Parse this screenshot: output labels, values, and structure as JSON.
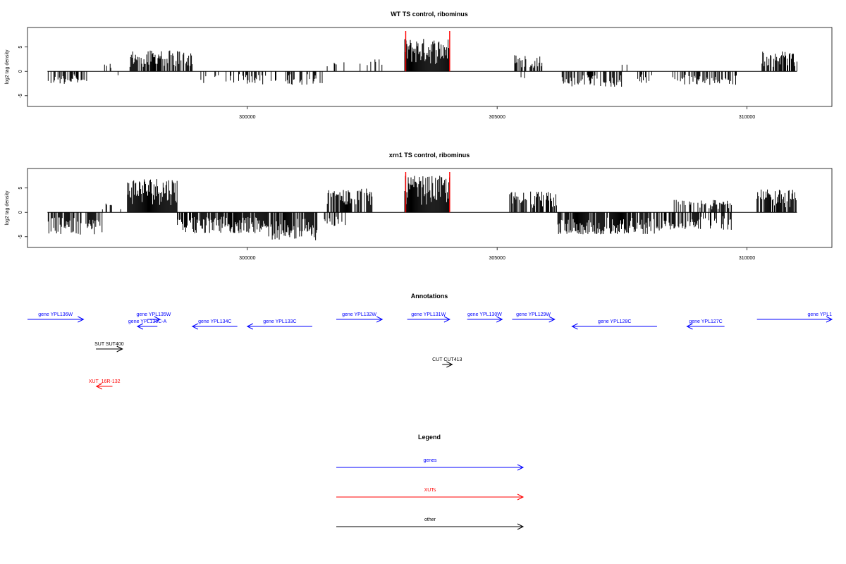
{
  "colors": {
    "gene": "#0000ff",
    "xut": "#ff0000",
    "other": "#000000",
    "highlight": "#ff0000",
    "frame": "#000000"
  },
  "chart_data": [
    {
      "type": "bar",
      "title": "WT TS control, ribominus",
      "ylabel": "log2 tag density",
      "xlim": [
        295600,
        311700
      ],
      "ylim": [
        -7.2,
        9
      ],
      "xticks": [
        300000,
        305000,
        310000
      ],
      "yticks": [
        -5,
        0,
        5
      ],
      "ytick_labels": [
        "-5",
        "0",
        "5"
      ],
      "highlight_lines": [
        303170,
        304050
      ],
      "dense_bars_at": "x is a coordinate; bars pos above 0 neg below",
      "segments": [
        {
          "from": 296000,
          "to": 296800,
          "sign": -1,
          "amp": 2.6,
          "density": 0.55
        },
        {
          "from": 297100,
          "to": 297280,
          "sign": 1,
          "amp": 1.6,
          "density": 0.3
        },
        {
          "from": 297300,
          "to": 297500,
          "sign": -1,
          "amp": 1.5,
          "density": 0.2
        },
        {
          "from": 297650,
          "to": 298900,
          "sign": 1,
          "amp": 4.3,
          "density": 0.75
        },
        {
          "from": 299000,
          "to": 300000,
          "sign": -1,
          "amp": 2.4,
          "density": 0.3
        },
        {
          "from": 300000,
          "to": 301500,
          "sign": -1,
          "amp": 2.8,
          "density": 0.35
        },
        {
          "from": 301500,
          "to": 302300,
          "sign": 1,
          "amp": 2.0,
          "density": 0.15
        },
        {
          "from": 302400,
          "to": 302700,
          "sign": 1,
          "amp": 2.5,
          "density": 0.35
        },
        {
          "from": 303150,
          "to": 304050,
          "sign": 1,
          "amp": 6.8,
          "density": 1.0
        },
        {
          "from": 305350,
          "to": 305900,
          "sign": 1,
          "amp": 3.5,
          "density": 0.65
        },
        {
          "from": 305450,
          "to": 305550,
          "sign": -1,
          "amp": 2.0,
          "density": 0.4
        },
        {
          "from": 306300,
          "to": 307500,
          "sign": -1,
          "amp": 3.2,
          "density": 0.6
        },
        {
          "from": 307500,
          "to": 307600,
          "sign": 1,
          "amp": 1.8,
          "density": 0.3
        },
        {
          "from": 307800,
          "to": 308100,
          "sign": -1,
          "amp": 2.6,
          "density": 0.5
        },
        {
          "from": 308500,
          "to": 309800,
          "sign": -1,
          "amp": 2.8,
          "density": 0.55
        },
        {
          "from": 310300,
          "to": 311000,
          "sign": 1,
          "amp": 4.3,
          "density": 0.75
        }
      ]
    },
    {
      "type": "bar",
      "title": "xrn1 TS control, ribominus",
      "ylabel": "log2 tag density",
      "xlim": [
        295600,
        311700
      ],
      "ylim": [
        -7.2,
        9
      ],
      "xticks": [
        300000,
        305000,
        310000
      ],
      "yticks": [
        -5,
        0,
        5
      ],
      "ytick_labels": [
        "-5",
        "0",
        "5"
      ],
      "highlight_lines": [
        303170,
        304050
      ],
      "segments": [
        {
          "from": 296000,
          "to": 297100,
          "sign": -1,
          "amp": 4.6,
          "density": 0.7
        },
        {
          "from": 297100,
          "to": 297600,
          "sign": 1,
          "amp": 1.8,
          "density": 0.25
        },
        {
          "from": 297600,
          "to": 298600,
          "sign": 1,
          "amp": 7.2,
          "density": 1.0
        },
        {
          "from": 298600,
          "to": 300400,
          "sign": -1,
          "amp": 4.3,
          "density": 0.85
        },
        {
          "from": 300400,
          "to": 301400,
          "sign": -1,
          "amp": 5.8,
          "density": 0.85
        },
        {
          "from": 301500,
          "to": 302000,
          "sign": -1,
          "amp": 3.0,
          "density": 0.3
        },
        {
          "from": 301600,
          "to": 302500,
          "sign": 1,
          "amp": 4.9,
          "density": 0.65
        },
        {
          "from": 303150,
          "to": 304050,
          "sign": 1,
          "amp": 7.5,
          "density": 1.0
        },
        {
          "from": 305250,
          "to": 306200,
          "sign": 1,
          "amp": 4.3,
          "density": 0.75
        },
        {
          "from": 306200,
          "to": 308300,
          "sign": -1,
          "amp": 4.5,
          "density": 0.85
        },
        {
          "from": 308300,
          "to": 309700,
          "sign": -1,
          "amp": 3.6,
          "density": 0.6
        },
        {
          "from": 308500,
          "to": 309700,
          "sign": 1,
          "amp": 2.6,
          "density": 0.5
        },
        {
          "from": 310200,
          "to": 311000,
          "sign": 1,
          "amp": 4.7,
          "density": 0.75
        }
      ]
    }
  ],
  "annotations": {
    "title": "Annotations",
    "items": [
      {
        "label": "gene YPL136W",
        "kind": "gene",
        "start": 295600,
        "end": 296720,
        "strand": "+",
        "row": 0
      },
      {
        "label": "gene YPL135W",
        "kind": "gene",
        "start": 298000,
        "end": 298250,
        "strand": "+",
        "row": 0
      },
      {
        "label": "gene YPL135C-A",
        "kind": "gene",
        "start": 297800,
        "end": 298200,
        "strand": "-",
        "row": 1
      },
      {
        "label": "gene YPL134C",
        "kind": "gene",
        "start": 298900,
        "end": 299800,
        "strand": "-",
        "row": 1
      },
      {
        "label": "gene YPL133C",
        "kind": "gene",
        "start": 300000,
        "end": 301300,
        "strand": "-",
        "row": 1
      },
      {
        "label": "gene YPL132W",
        "kind": "gene",
        "start": 301780,
        "end": 302700,
        "strand": "+",
        "row": 0
      },
      {
        "label": "gene YPL131W",
        "kind": "gene",
        "start": 303200,
        "end": 304050,
        "strand": "+",
        "row": 0
      },
      {
        "label": "gene YPL130W",
        "kind": "gene",
        "start": 304400,
        "end": 305100,
        "strand": "+",
        "row": 0
      },
      {
        "label": "gene YPL129W",
        "kind": "gene",
        "start": 305300,
        "end": 306150,
        "strand": "+",
        "row": 0
      },
      {
        "label": "gene YPL128C",
        "kind": "gene",
        "start": 306500,
        "end": 308200,
        "strand": "-",
        "row": 1
      },
      {
        "label": "gene YPL127C",
        "kind": "gene",
        "start": 308800,
        "end": 309550,
        "strand": "-",
        "row": 1
      },
      {
        "label": "gene YPL1",
        "kind": "gene",
        "start": 310200,
        "end": 311700,
        "strand": "+",
        "row": 0
      },
      {
        "label": "SUT SUT400",
        "kind": "other",
        "start": 296970,
        "end": 297500,
        "strand": "+",
        "row": 2
      },
      {
        "label": "CUT CUT413",
        "kind": "other",
        "start": 303900,
        "end": 304100,
        "strand": "+",
        "row": 3
      },
      {
        "label": "XUT_16R-132",
        "kind": "xut",
        "start": 296980,
        "end": 297300,
        "strand": "-",
        "row": 4
      }
    ]
  },
  "legend": {
    "title": "Legend",
    "items": [
      {
        "label": "genes",
        "kind": "gene"
      },
      {
        "label": "XUTs",
        "kind": "xut"
      },
      {
        "label": "other",
        "kind": "other"
      }
    ]
  }
}
